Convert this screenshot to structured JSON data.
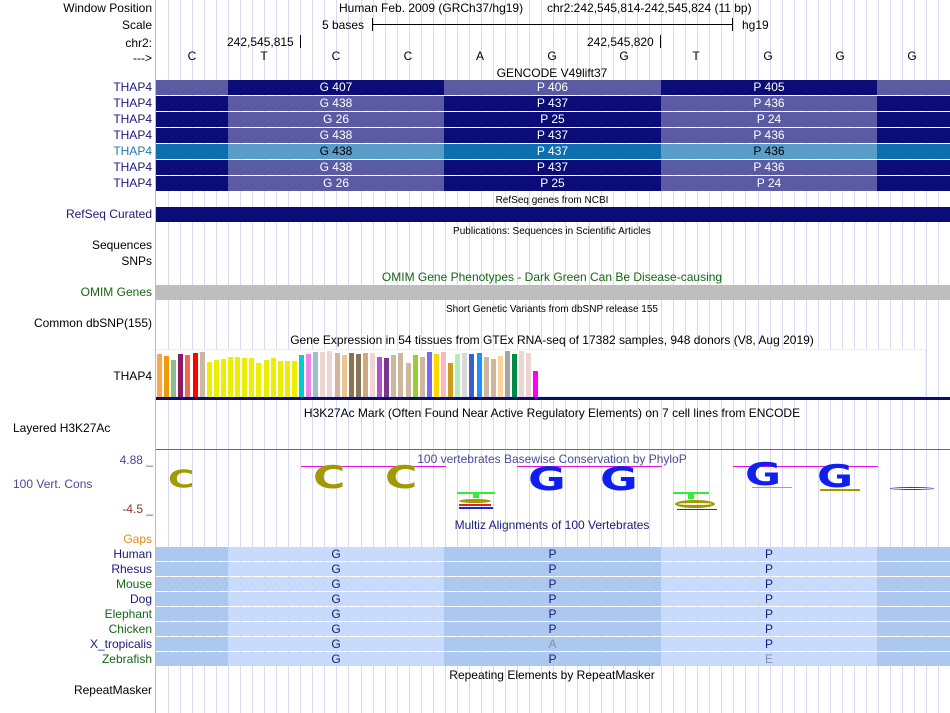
{
  "header": {
    "window_position_label": "Window Position",
    "scale_label": "Scale",
    "chrom_label": "chr2:",
    "strand_label": "--->",
    "assembly_text": "Human Feb. 2009 (GRCh37/hg19)",
    "position_text": "chr2:242,545,814-242,545,824 (11 bp)",
    "scale_text": "5 bases",
    "scale_db": "hg19",
    "tick_1": "242,545,815",
    "tick_2": "242,545,820"
  },
  "bases": [
    "C",
    "T",
    "C",
    "C",
    "A",
    "G",
    "G",
    "T",
    "G",
    "G",
    "G"
  ],
  "gencode": {
    "title": "GENCODE V49lift37",
    "rows": [
      {
        "label": "THAP4",
        "highlight": false,
        "codons": [
          "G 407",
          "P 406",
          "P 405"
        ],
        "phase": "a"
      },
      {
        "label": "THAP4",
        "highlight": false,
        "codons": [
          "G 438",
          "P 437",
          "P 436"
        ],
        "phase": "b"
      },
      {
        "label": "THAP4",
        "highlight": false,
        "codons": [
          "G 26",
          "P 25",
          "P 24"
        ],
        "phase": "b"
      },
      {
        "label": "THAP4",
        "highlight": false,
        "codons": [
          "G 438",
          "P 437",
          "P 436"
        ],
        "phase": "b"
      },
      {
        "label": "THAP4",
        "highlight": true,
        "codons": [
          "G 438",
          "P 437",
          "P 436"
        ],
        "phase": "b"
      },
      {
        "label": "THAP4",
        "highlight": false,
        "codons": [
          "G 438",
          "P 437",
          "P 436"
        ],
        "phase": "b"
      },
      {
        "label": "THAP4",
        "highlight": false,
        "codons": [
          "G 26",
          "P 25",
          "P 24"
        ],
        "phase": "b"
      }
    ]
  },
  "refseq": {
    "title": "RefSeq genes from NCBI",
    "label": "RefSeq Curated"
  },
  "publications": {
    "title": "Publications: Sequences in Scientific Articles",
    "label_1": "Sequences",
    "label_2": "SNPs"
  },
  "omim": {
    "title": "OMIM Gene Phenotypes - Dark Green Can Be Disease-causing",
    "label": "OMIM Genes"
  },
  "dbsnp": {
    "title": "Short Genetic Variants from dbSNP release 155",
    "label": "Common dbSNP(155)"
  },
  "gtex": {
    "title": "Gene Expression in 54 tissues from GTEx RNA-seq of 17382 samples, 948 donors (V8, Aug 2019)",
    "label": "THAP4",
    "bars": [
      {
        "color": "#ffa54f",
        "value": 0.93
      },
      {
        "color": "#ee9a00",
        "value": 0.89
      },
      {
        "color": "#8fbc8f",
        "value": 0.81
      },
      {
        "color": "#8b1c62",
        "value": 0.93
      },
      {
        "color": "#ee6a50",
        "value": 0.91
      },
      {
        "color": "#ff0000",
        "value": 0.95
      },
      {
        "color": "#cdb79e",
        "value": 0.97
      },
      {
        "color": "#eeee00",
        "value": 0.75
      },
      {
        "color": "#eeee00",
        "value": 0.8
      },
      {
        "color": "#eeee00",
        "value": 0.82
      },
      {
        "color": "#eeee00",
        "value": 0.87
      },
      {
        "color": "#eeee00",
        "value": 0.87
      },
      {
        "color": "#eeee00",
        "value": 0.84
      },
      {
        "color": "#eeee00",
        "value": 0.84
      },
      {
        "color": "#eeee00",
        "value": 0.73
      },
      {
        "color": "#eeee00",
        "value": 0.8
      },
      {
        "color": "#eeee00",
        "value": 0.84
      },
      {
        "color": "#eeee00",
        "value": 0.78
      },
      {
        "color": "#eeee00",
        "value": 0.78
      },
      {
        "color": "#eeee00",
        "value": 0.78
      },
      {
        "color": "#00cdcd",
        "value": 0.91
      },
      {
        "color": "#ee82ee",
        "value": 0.93
      },
      {
        "color": "#9ac0cd",
        "value": 0.97
      },
      {
        "color": "#eed5d2",
        "value": 0.97
      },
      {
        "color": "#eed5d2",
        "value": 0.99
      },
      {
        "color": "#cdb79e",
        "value": 0.95
      },
      {
        "color": "#eec591",
        "value": 0.91
      },
      {
        "color": "#8b7355",
        "value": 0.95
      },
      {
        "color": "#8b7355",
        "value": 0.93
      },
      {
        "color": "#cdaa7d",
        "value": 0.95
      },
      {
        "color": "#eed5d2",
        "value": 0.95
      },
      {
        "color": "#b452cd",
        "value": 0.87
      },
      {
        "color": "#7a378b",
        "value": 0.85
      },
      {
        "color": "#cdb79e",
        "value": 0.91
      },
      {
        "color": "#cdb79e",
        "value": 0.95
      },
      {
        "color": "#cdb79e",
        "value": 0.73
      },
      {
        "color": "#9acd32",
        "value": 0.91
      },
      {
        "color": "#cdb79e",
        "value": 0.87
      },
      {
        "color": "#7b68ee",
        "value": 0.97
      },
      {
        "color": "#ffd700",
        "value": 0.93
      },
      {
        "color": "#ffb6c1",
        "value": 0.97
      },
      {
        "color": "#cd9b1d",
        "value": 0.73
      },
      {
        "color": "#b4eeb4",
        "value": 0.93
      },
      {
        "color": "#d9d9d9",
        "value": 0.95
      },
      {
        "color": "#3a5fcd",
        "value": 0.93
      },
      {
        "color": "#1e90ff",
        "value": 0.95
      },
      {
        "color": "#cdb79e",
        "value": 0.87
      },
      {
        "color": "#cdb79e",
        "value": 0.83
      },
      {
        "color": "#ffd39b",
        "value": 0.89
      },
      {
        "color": "#a6a6a6",
        "value": 1.0
      },
      {
        "color": "#008b45",
        "value": 0.93
      },
      {
        "color": "#eed5d2",
        "value": 0.99
      },
      {
        "color": "#eed5d2",
        "value": 0.95
      },
      {
        "color": "#ff00ff",
        "value": 0.57
      }
    ]
  },
  "h3k27ac": {
    "title": "H3K27Ac Mark (Often Found Near Active Regulatory Elements) on 7 cell lines from ENCODE",
    "label": "Layered H3K27Ac"
  },
  "phylop": {
    "title": "100 vertebrates Basewise Conservation by PhyloP",
    "label": "100 Vert. Cons",
    "max_label": "4.88 _",
    "min_label": "-4.5 _",
    "logo": [
      "C",
      "",
      "C",
      "C",
      "T",
      "G",
      "G",
      "T",
      "G",
      "G",
      "-"
    ]
  },
  "multiz": {
    "title": "Multiz Alignments of 100 Vertebrates",
    "gaps_label": "Gaps",
    "rows": [
      {
        "species": "Human",
        "color": "navy",
        "codons": [
          "G",
          "P",
          "P"
        ],
        "faded": [
          false,
          false,
          false
        ]
      },
      {
        "species": "Rhesus",
        "color": "navy",
        "codons": [
          "G",
          "P",
          "P"
        ],
        "faded": [
          false,
          false,
          false
        ]
      },
      {
        "species": "Mouse",
        "color": "green",
        "codons": [
          "G",
          "P",
          "P"
        ],
        "faded": [
          false,
          false,
          false
        ]
      },
      {
        "species": "Dog",
        "color": "navy",
        "codons": [
          "G",
          "P",
          "P"
        ],
        "faded": [
          false,
          false,
          false
        ]
      },
      {
        "species": "Elephant",
        "color": "green",
        "codons": [
          "G",
          "P",
          "P"
        ],
        "faded": [
          false,
          false,
          false
        ]
      },
      {
        "species": "Chicken",
        "color": "green",
        "codons": [
          "G",
          "P",
          "P"
        ],
        "faded": [
          false,
          false,
          false
        ]
      },
      {
        "species": "X_tropicalis",
        "color": "navy",
        "codons": [
          "G",
          "A",
          "P"
        ],
        "faded": [
          false,
          true,
          false
        ]
      },
      {
        "species": "Zebrafish",
        "color": "green",
        "codons": [
          "G",
          "P",
          "E"
        ],
        "faded": [
          false,
          false,
          true
        ]
      }
    ]
  },
  "repeatmasker": {
    "title": "Repeating Elements by RepeatMasker",
    "label": "RepeatMasker"
  },
  "colors": {
    "cds_dark": "#0c0c78",
    "cds_light": "#5b5ba3",
    "cds_hl_dark": "#0e6fae",
    "cds_hl_light": "#5a9dc9",
    "maf_dark": "#adc8ee",
    "maf_light": "#c8dbfc",
    "omim_bar": "#bebebe",
    "grid": "#d9d9f3"
  }
}
